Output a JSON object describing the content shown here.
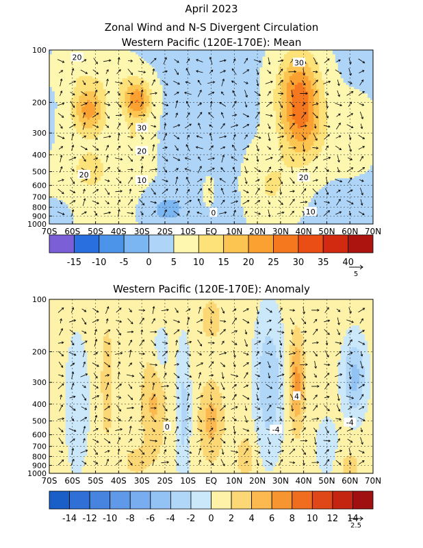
{
  "header": {
    "line1": "April 2023",
    "line2": "Zonal Wind and N-S Divergent Circulation",
    "line3": "Western Pacific (120E-170E): Mean"
  },
  "axes": {
    "x_ticks": [
      "70S",
      "60S",
      "50S",
      "40S",
      "30S",
      "20S",
      "10S",
      "EQ",
      "10N",
      "20N",
      "30N",
      "40N",
      "50N",
      "60N",
      "70N"
    ],
    "y_ticks": [
      "100",
      "200",
      "300",
      "400",
      "500",
      "600",
      "700",
      "800",
      "900",
      "1000"
    ]
  },
  "chart_data": [
    {
      "type": "heatmap",
      "title": "",
      "x_categories": [
        "70S",
        "60S",
        "50S",
        "40S",
        "30S",
        "20S",
        "10S",
        "EQ",
        "10N",
        "20N",
        "30N",
        "40N",
        "50N",
        "60N",
        "70N"
      ],
      "y_levels_hpa": [
        100,
        200,
        300,
        400,
        500,
        600,
        700,
        800,
        900,
        1000
      ],
      "y_scale": "log",
      "colorbar": {
        "levels": [
          -20,
          -15,
          -10,
          -5,
          0,
          5,
          10,
          15,
          20,
          25,
          30,
          35,
          40,
          45
        ],
        "labels": [
          "-15",
          "-10",
          "-5",
          "0",
          "5",
          "10",
          "15",
          "20",
          "25",
          "30",
          "35",
          "40"
        ],
        "colors": [
          "#7a5fd6",
          "#2a6fe0",
          "#4c93ea",
          "#7bb6f2",
          "#aed4f8",
          "#fdf7b0",
          "#fde27a",
          "#fcc552",
          "#fba131",
          "#f6781e",
          "#ea4e15",
          "#d12a10",
          "#ac1410"
        ]
      },
      "contour_labels": [
        {
          "text": "20",
          "lat": -58,
          "p": 110
        },
        {
          "text": "30",
          "lat": -30,
          "p": 280
        },
        {
          "text": "20",
          "lat": -30,
          "p": 380
        },
        {
          "text": "20",
          "lat": -55,
          "p": 520
        },
        {
          "text": "10",
          "lat": -30,
          "p": 560
        },
        {
          "text": "30",
          "lat": 38,
          "p": 118
        },
        {
          "text": "20",
          "lat": 40,
          "p": 540
        },
        {
          "text": "10",
          "lat": 43,
          "p": 850
        },
        {
          "text": "0",
          "lat": 1,
          "p": 860
        }
      ],
      "features": [
        {
          "lat": -53,
          "p": 220,
          "amp": 17,
          "wl": 7,
          "wp": 0.32
        },
        {
          "lat": -53,
          "p": 480,
          "amp": 6,
          "wl": 7,
          "wp": 0.25
        },
        {
          "lat": -32,
          "p": 195,
          "amp": 20,
          "wl": 6,
          "wp": 0.25
        },
        {
          "lat": -42,
          "p": 140,
          "amp": 4,
          "wl": 10,
          "wp": 0.25
        },
        {
          "lat": -60,
          "p": 130,
          "amp": 4,
          "wl": 8,
          "wp": 0.25
        },
        {
          "lat": -34,
          "p": 320,
          "amp": 4,
          "wl": 7,
          "wp": 0.25
        },
        {
          "lat": 38,
          "p": 180,
          "amp": 21,
          "wl": 9,
          "wp": 0.55
        },
        {
          "lat": 40,
          "p": 300,
          "amp": 10,
          "wl": 9,
          "wp": 0.45
        },
        {
          "lat": 26,
          "p": 600,
          "amp": 6,
          "wl": 10,
          "wp": 0.45
        },
        {
          "lat": 60,
          "p": 300,
          "amp": 2,
          "wl": 12,
          "wp": 0.5
        },
        {
          "lat": -45,
          "p": 600,
          "amp": 3,
          "wl": 20,
          "wp": 0.8
        },
        {
          "lat": -20,
          "p": 820,
          "amp": -6,
          "wl": 10,
          "wp": 0.25
        },
        {
          "lat": 5,
          "p": 920,
          "amp": -4,
          "wl": 5,
          "wp": 0.3
        },
        {
          "lat": -5,
          "p": 400,
          "amp": -3,
          "wl": 12,
          "wp": 0.8
        },
        {
          "lat": -1,
          "p": 650,
          "amp": 8,
          "wl": 2.5,
          "wp": 0.2
        },
        {
          "lat": 60,
          "p": 950,
          "amp": -2,
          "wl": 6,
          "wp": 0.2
        },
        {
          "lat": -65,
          "p": 950,
          "amp": -3,
          "wl": 5,
          "wp": 0.2
        }
      ],
      "base": 4.5
    },
    {
      "type": "heatmap",
      "title": "Western Pacific (120E-170E): Anomaly",
      "x_categories": [
        "70S",
        "60S",
        "50S",
        "40S",
        "30S",
        "20S",
        "10S",
        "EQ",
        "10N",
        "20N",
        "30N",
        "40N",
        "50N",
        "60N",
        "70N"
      ],
      "y_levels_hpa": [
        100,
        200,
        300,
        400,
        500,
        600,
        700,
        800,
        900,
        1000
      ],
      "y_scale": "log",
      "colorbar": {
        "levels": [
          -16,
          -14,
          -12,
          -10,
          -8,
          -6,
          -4,
          -2,
          0,
          2,
          4,
          6,
          8,
          10,
          12,
          14,
          16
        ],
        "labels": [
          "-14",
          "-12",
          "-10",
          "-8",
          "-6",
          "-4",
          "-2",
          "0",
          "2",
          "4",
          "6",
          "8",
          "10",
          "12",
          "14"
        ],
        "colors": [
          "#1a5ec8",
          "#2f6fd6",
          "#4784e0",
          "#5f99e8",
          "#78adef",
          "#93c2f4",
          "#b0d7f8",
          "#cbe8fb",
          "#fdf2a8",
          "#fcd775",
          "#fbb950",
          "#f79630",
          "#f06d20",
          "#e04718",
          "#c42510",
          "#a11010"
        ]
      },
      "contour_labels": [
        {
          "text": "4",
          "lat": 37,
          "p": 360
        },
        {
          "text": "-4",
          "lat": 28,
          "p": 560
        },
        {
          "text": "-4",
          "lat": 60,
          "p": 510
        },
        {
          "text": "0",
          "lat": -19,
          "p": 540
        }
      ],
      "features": [
        {
          "lat": -25,
          "p": 400,
          "amp": 3.5,
          "wl": 5,
          "wp": 0.7
        },
        {
          "lat": -45,
          "p": 300,
          "amp": 2.2,
          "wl": 3,
          "wp": 0.9
        },
        {
          "lat": -33,
          "p": 850,
          "amp": 2,
          "wl": 5,
          "wp": 0.2
        },
        {
          "lat": 0,
          "p": 500,
          "amp": 4,
          "wl": 5,
          "wp": 0.5
        },
        {
          "lat": 0,
          "p": 130,
          "amp": 3,
          "wl": 4,
          "wp": 0.25
        },
        {
          "lat": 37,
          "p": 300,
          "amp": 6,
          "wl": 3,
          "wp": 0.6
        },
        {
          "lat": -12,
          "p": 450,
          "amp": -3.5,
          "wl": 3,
          "wp": 0.9
        },
        {
          "lat": -58,
          "p": 400,
          "amp": -2.5,
          "wl": 5,
          "wp": 0.9
        },
        {
          "lat": -22,
          "p": 200,
          "amp": -2.5,
          "wl": 4,
          "wp": 0.35
        },
        {
          "lat": 25,
          "p": 300,
          "amp": -4.5,
          "wl": 6,
          "wp": 0.9
        },
        {
          "lat": 62,
          "p": 280,
          "amp": -5.5,
          "wl": 5,
          "wp": 0.5
        },
        {
          "lat": 50,
          "p": 700,
          "amp": -2,
          "wl": 5,
          "wp": 0.4
        },
        {
          "lat": 15,
          "p": 800,
          "amp": 2.5,
          "wl": 4,
          "wp": 0.3
        },
        {
          "lat": 60,
          "p": 900,
          "amp": 2,
          "wl": 5,
          "wp": 0.2
        }
      ],
      "base": 0.8
    }
  ],
  "vector_refs": [
    "5",
    "2.5"
  ]
}
